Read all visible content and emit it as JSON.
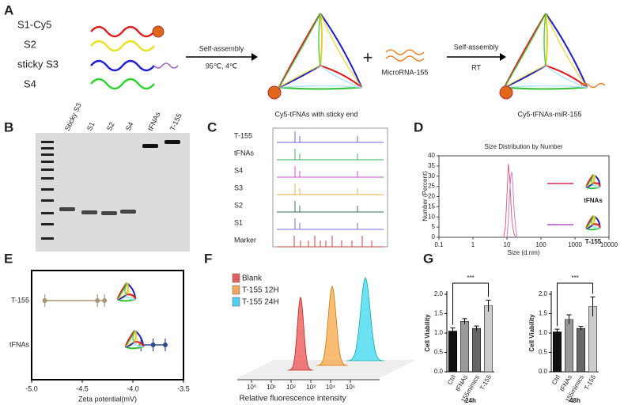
{
  "figure": {
    "panel_labels": [
      "A",
      "B",
      "C",
      "D",
      "E",
      "F",
      "G"
    ],
    "scheme": {
      "strands": [
        "S1-Cy5",
        "S2",
        "sticky S3",
        "S4"
      ],
      "step1": [
        "Self-assembly",
        "95℃, 4℃"
      ],
      "product1": "Cy5-tFNAs with sticky end",
      "plus": "+",
      "mirna": "MicroRNA-155",
      "step2": [
        "Self-assembly",
        "RT"
      ],
      "product2": "Cy5-tFNAs-miR-155"
    },
    "gel": {
      "lanes": [
        "Sticky S3",
        "S1",
        "S2",
        "S4",
        "tFNAs",
        "T-155"
      ]
    },
    "electropherogram": {
      "traces": [
        "T-155",
        "tFNAs",
        "S4",
        "S3",
        "S2",
        "S1",
        "Marker"
      ]
    },
    "flow": {
      "legend": [
        "Blank",
        "T-155 12H",
        "T-155 24H"
      ],
      "xlabel": "Relative fluorescence intensity",
      "xticks": [
        "10⁰",
        "10¹",
        "10²",
        "10³",
        "10⁴",
        "10⁵"
      ]
    }
  },
  "chart_data": [
    {
      "type": "line",
      "title": "Size Distribution by Number",
      "xlabel": "Size (d.nm)",
      "ylabel": "Number (Percent)",
      "log_x": true,
      "xlim": [
        0.1,
        10000
      ],
      "xticks": [
        0.1,
        1,
        10,
        100,
        1000,
        10000
      ],
      "ylim": [
        0,
        40
      ],
      "yticks": [
        0,
        5,
        10,
        15,
        20,
        25,
        30,
        35,
        40
      ],
      "series": [
        {
          "name": "tFNAs",
          "color": "#e3607c",
          "x": [
            8,
            9,
            10,
            11,
            12,
            13,
            14,
            16,
            18
          ],
          "values": [
            0,
            5,
            20,
            36,
            30,
            18,
            8,
            2,
            0
          ]
        },
        {
          "name": "T-155",
          "color": "#c27fd0",
          "x": [
            10,
            11,
            12,
            13,
            14,
            15,
            16,
            18,
            20
          ],
          "values": [
            0,
            8,
            22,
            30,
            32,
            25,
            15,
            5,
            0
          ]
        }
      ]
    },
    {
      "type": "dot",
      "xlabel": "Zeta potential(mV)",
      "categories": [
        "T-155",
        "tFNAs"
      ],
      "points": [
        [
          -4.87,
          -4.35,
          -4.28
        ],
        [
          -3.92,
          -3.8,
          -3.68
        ]
      ],
      "colors": [
        "#a89578",
        "#2e4a8a"
      ],
      "xlim": [
        -5,
        -3.5
      ],
      "xticks": [
        {
          "value": -5,
          "label": "-5.0"
        },
        -4.5,
        {
          "value": -4,
          "label": "-4.0"
        },
        -3.5
      ]
    },
    {
      "type": "bar",
      "title": "24h",
      "ylabel": "Cell Viability",
      "categories": [
        "Ctrl",
        "tFNAs",
        "155mimics",
        "T-155"
      ],
      "values": [
        1.05,
        1.3,
        1.12,
        1.7
      ],
      "errors": [
        0.08,
        0.07,
        0.06,
        0.15
      ],
      "colors": [
        "#111111",
        "#999999",
        "#666666",
        "#cccccc"
      ],
      "ylim": [
        0,
        2
      ],
      "yticks": [
        {
          "value": 0,
          "label": "0.0"
        },
        0.5,
        {
          "value": 1,
          "label": "1.0"
        },
        1.5,
        {
          "value": 2,
          "label": "2.0"
        }
      ],
      "significance": "***"
    },
    {
      "type": "bar",
      "title": "48h",
      "ylabel": "Cell Viability",
      "categories": [
        "Ctrl",
        "tFNAs",
        "155mimics",
        "T-155"
      ],
      "values": [
        1.03,
        1.35,
        1.12,
        1.68
      ],
      "errors": [
        0.07,
        0.12,
        0.05,
        0.25
      ],
      "colors": [
        "#111111",
        "#999999",
        "#666666",
        "#cccccc"
      ],
      "ylim": [
        0,
        2
      ],
      "yticks": [
        {
          "value": 0,
          "label": "0.0"
        },
        0.5,
        {
          "value": 1,
          "label": "1.0"
        },
        1.5,
        {
          "value": 2,
          "label": "2.0"
        }
      ],
      "significance": "***"
    }
  ]
}
